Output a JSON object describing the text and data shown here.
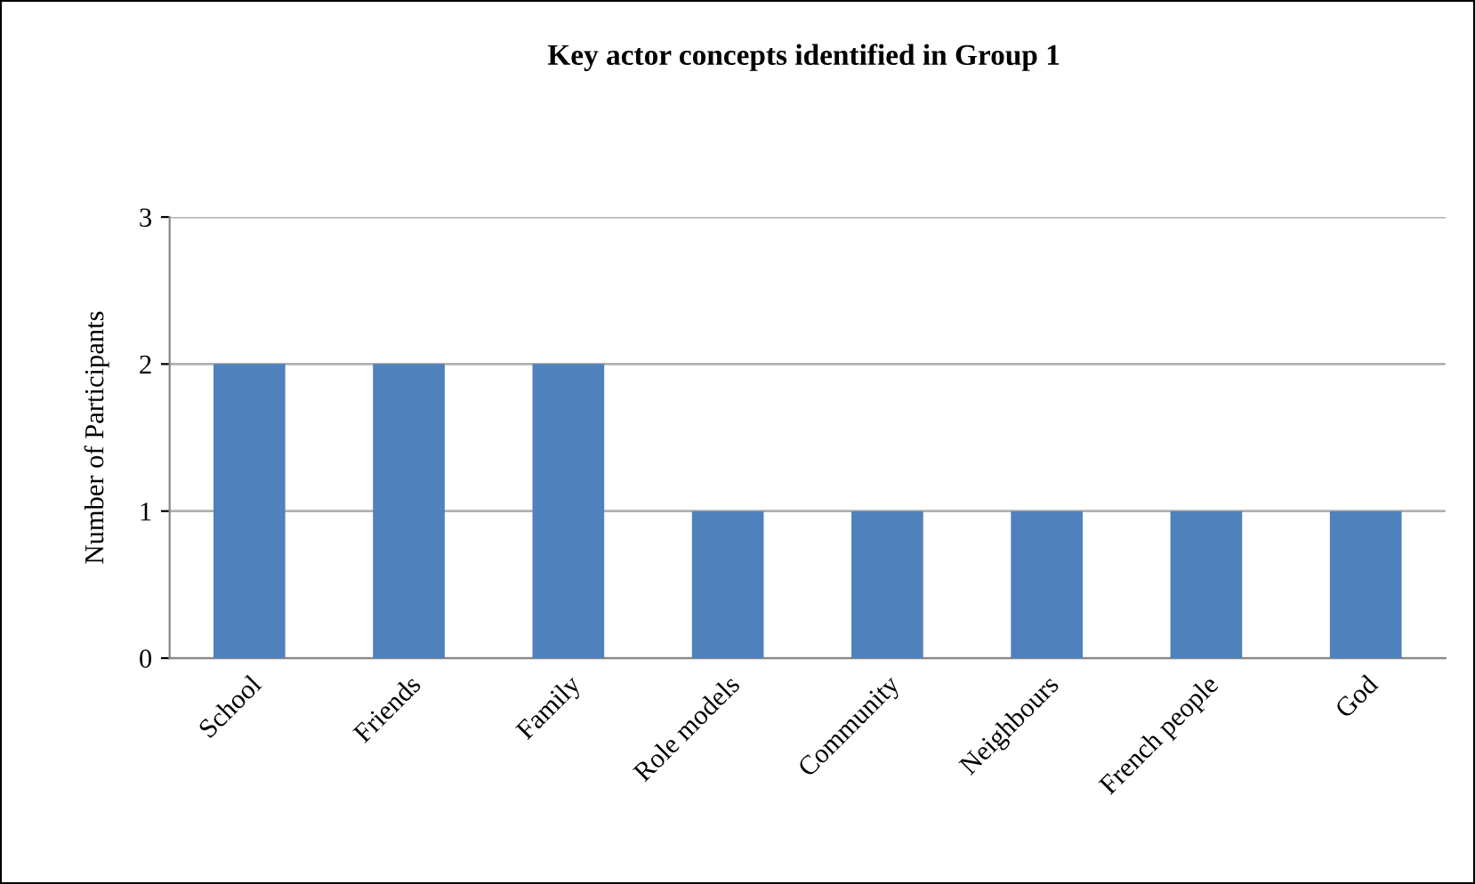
{
  "chart_data": {
    "type": "bar",
    "title": "Key actor concepts identified in Group 1",
    "ylabel": "Number of Participants",
    "categories": [
      "School",
      "Friends",
      "Family",
      "Role models",
      "Community",
      "Neighbours",
      "French people",
      "God"
    ],
    "values": [
      2,
      2,
      2,
      1,
      1,
      1,
      1,
      1
    ],
    "color": "#4f81bd",
    "ylim": [
      0,
      3
    ],
    "yticks": [
      0,
      1,
      2,
      3
    ],
    "grid": "y",
    "legend": false
  }
}
